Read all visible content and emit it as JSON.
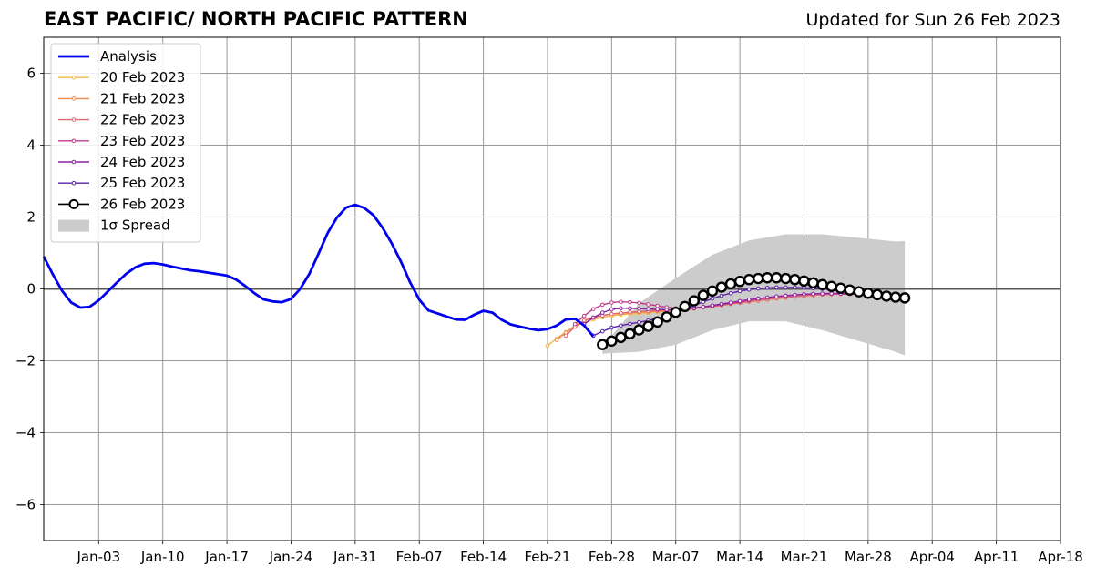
{
  "title": "EAST PACIFIC/ NORTH PACIFIC PATTERN",
  "subtitle": "Updated for Sun 26 Feb 2023",
  "chart_data": {
    "type": "line",
    "title": "EAST PACIFIC/ NORTH PACIFIC PATTERN",
    "subtitle": "Updated for Sun 26 Feb 2023",
    "xlabel": "",
    "ylabel": "",
    "xlim": [
      "2022-12-28",
      "2023-04-18"
    ],
    "ylim": [
      -7,
      7
    ],
    "x_ticks": [
      "Jan-03",
      "Jan-10",
      "Jan-17",
      "Jan-24",
      "Jan-31",
      "Feb-07",
      "Feb-14",
      "Feb-21",
      "Feb-28",
      "Mar-07",
      "Mar-14",
      "Mar-21",
      "Mar-28",
      "Apr-04",
      "Apr-11",
      "Apr-18"
    ],
    "y_ticks": [
      6,
      4,
      2,
      0,
      -2,
      -4,
      -6
    ],
    "y_tick_labels": [
      "6",
      "4",
      "2",
      "0",
      "−2",
      "−4",
      "−6"
    ],
    "grid": true,
    "legend_position": "top-left",
    "spread": {
      "name": "1σ Spread",
      "color": "#cccccc",
      "x": [
        "2023-02-27",
        "2023-03-03",
        "2023-03-07",
        "2023-03-11",
        "2023-03-15",
        "2023-03-19",
        "2023-03-23",
        "2023-03-27",
        "2023-03-31",
        "2023-04-01"
      ],
      "upper": [
        -1.6,
        -0.4,
        0.3,
        0.95,
        1.35,
        1.52,
        1.52,
        1.42,
        1.32,
        1.33
      ],
      "lower": [
        -1.8,
        -1.75,
        -1.55,
        -1.15,
        -0.9,
        -0.9,
        -1.15,
        -1.45,
        -1.75,
        -1.85
      ]
    },
    "series": [
      {
        "name": "Analysis",
        "color": "#0000ee",
        "style": "analysis",
        "x": [
          "2022-12-28",
          "2022-12-29",
          "2022-12-30",
          "2022-12-31",
          "2023-01-01",
          "2023-01-02",
          "2023-01-03",
          "2023-01-04",
          "2023-01-05",
          "2023-01-06",
          "2023-01-07",
          "2023-01-08",
          "2023-01-09",
          "2023-01-10",
          "2023-01-11",
          "2023-01-12",
          "2023-01-13",
          "2023-01-14",
          "2023-01-15",
          "2023-01-16",
          "2023-01-17",
          "2023-01-18",
          "2023-01-19",
          "2023-01-20",
          "2023-01-21",
          "2023-01-22",
          "2023-01-23",
          "2023-01-24",
          "2023-01-25",
          "2023-01-26",
          "2023-01-27",
          "2023-01-28",
          "2023-01-29",
          "2023-01-30",
          "2023-01-31",
          "2023-02-01",
          "2023-02-02",
          "2023-02-03",
          "2023-02-04",
          "2023-02-05",
          "2023-02-06",
          "2023-02-07",
          "2023-02-08",
          "2023-02-09",
          "2023-02-10",
          "2023-02-11",
          "2023-02-12",
          "2023-02-13",
          "2023-02-14",
          "2023-02-15",
          "2023-02-16",
          "2023-02-17",
          "2023-02-18",
          "2023-02-19",
          "2023-02-20",
          "2023-02-21",
          "2023-02-22",
          "2023-02-23",
          "2023-02-24",
          "2023-02-25",
          "2023-02-26"
        ],
        "values": [
          0.9,
          0.4,
          -0.05,
          -0.38,
          -0.52,
          -0.5,
          -0.32,
          -0.07,
          0.18,
          0.42,
          0.6,
          0.7,
          0.72,
          0.68,
          0.62,
          0.57,
          0.52,
          0.49,
          0.45,
          0.41,
          0.37,
          0.26,
          0.08,
          -0.12,
          -0.29,
          -0.35,
          -0.37,
          -0.28,
          0.0,
          0.42,
          0.98,
          1.56,
          1.98,
          2.26,
          2.34,
          2.25,
          2.05,
          1.7,
          1.26,
          0.76,
          0.18,
          -0.3,
          -0.6,
          -0.68,
          -0.77,
          -0.85,
          -0.86,
          -0.72,
          -0.61,
          -0.66,
          -0.86,
          -0.99,
          -1.05,
          -1.11,
          -1.15,
          -1.12,
          -1.02,
          -0.85,
          -0.83,
          -1.02,
          -1.32
        ]
      },
      {
        "name": "20 Feb 2023",
        "color": "#f5b841",
        "style": "small",
        "x": [
          "2023-02-21",
          "2023-02-22",
          "2023-02-23",
          "2023-02-24",
          "2023-02-25",
          "2023-02-26",
          "2023-02-27",
          "2023-02-28",
          "2023-03-01",
          "2023-03-02",
          "2023-03-03",
          "2023-03-04",
          "2023-03-05",
          "2023-03-06",
          "2023-03-07",
          "2023-03-08",
          "2023-03-09",
          "2023-03-10",
          "2023-03-11",
          "2023-03-12",
          "2023-03-13",
          "2023-03-14",
          "2023-03-15",
          "2023-03-16",
          "2023-03-17",
          "2023-03-18",
          "2023-03-19",
          "2023-03-20",
          "2023-03-21",
          "2023-03-22",
          "2023-03-23",
          "2023-03-24",
          "2023-03-25",
          "2023-03-26"
        ],
        "values": [
          -1.58,
          -1.38,
          -1.2,
          -1.05,
          -0.93,
          -0.85,
          -0.79,
          -0.75,
          -0.72,
          -0.7,
          -0.68,
          -0.66,
          -0.64,
          -0.62,
          -0.6,
          -0.56,
          -0.53,
          -0.5,
          -0.47,
          -0.44,
          -0.41,
          -0.38,
          -0.35,
          -0.32,
          -0.29,
          -0.26,
          -0.23,
          -0.2,
          -0.18,
          -0.16,
          -0.15,
          -0.14,
          -0.14,
          -0.14
        ]
      },
      {
        "name": "21 Feb 2023",
        "color": "#f08a4b",
        "style": "small",
        "x": [
          "2023-02-22",
          "2023-02-23",
          "2023-02-24",
          "2023-02-25",
          "2023-02-26",
          "2023-02-27",
          "2023-02-28",
          "2023-03-01",
          "2023-03-02",
          "2023-03-03",
          "2023-03-04",
          "2023-03-05",
          "2023-03-06",
          "2023-03-07",
          "2023-03-08",
          "2023-03-09",
          "2023-03-10",
          "2023-03-11",
          "2023-03-12",
          "2023-03-13",
          "2023-03-14",
          "2023-03-15",
          "2023-03-16",
          "2023-03-17",
          "2023-03-18",
          "2023-03-19",
          "2023-03-20",
          "2023-03-21",
          "2023-03-22",
          "2023-03-23",
          "2023-03-24",
          "2023-03-25",
          "2023-03-26",
          "2023-03-27"
        ],
        "values": [
          -1.42,
          -1.22,
          -1.02,
          -0.88,
          -0.8,
          -0.74,
          -0.7,
          -0.68,
          -0.66,
          -0.65,
          -0.64,
          -0.62,
          -0.61,
          -0.6,
          -0.58,
          -0.55,
          -0.52,
          -0.49,
          -0.46,
          -0.42,
          -0.39,
          -0.36,
          -0.33,
          -0.3,
          -0.27,
          -0.25,
          -0.22,
          -0.2,
          -0.18,
          -0.16,
          -0.15,
          -0.14,
          -0.14,
          -0.14
        ]
      },
      {
        "name": "22 Feb 2023",
        "color": "#e06470",
        "style": "small",
        "x": [
          "2023-02-23",
          "2023-02-24",
          "2023-02-25",
          "2023-02-26",
          "2023-02-27",
          "2023-02-28",
          "2023-03-01",
          "2023-03-02",
          "2023-03-03",
          "2023-03-04",
          "2023-03-05",
          "2023-03-06",
          "2023-03-07",
          "2023-03-08",
          "2023-03-09",
          "2023-03-10",
          "2023-03-11",
          "2023-03-12",
          "2023-03-13",
          "2023-03-14",
          "2023-03-15",
          "2023-03-16",
          "2023-03-17",
          "2023-03-18",
          "2023-03-19",
          "2023-03-20",
          "2023-03-21",
          "2023-03-22",
          "2023-03-23",
          "2023-03-24",
          "2023-03-25",
          "2023-03-26",
          "2023-03-27"
        ],
        "values": [
          -1.3,
          -1.05,
          -0.88,
          -0.8,
          -0.74,
          -0.7,
          -0.67,
          -0.65,
          -0.63,
          -0.61,
          -0.6,
          -0.59,
          -0.58,
          -0.56,
          -0.54,
          -0.51,
          -0.48,
          -0.45,
          -0.42,
          -0.38,
          -0.35,
          -0.32,
          -0.29,
          -0.26,
          -0.23,
          -0.21,
          -0.19,
          -0.17,
          -0.16,
          -0.15,
          -0.14,
          -0.14,
          -0.14
        ]
      },
      {
        "name": "23 Feb 2023",
        "color": "#c23b8a",
        "style": "small",
        "x": [
          "2023-02-24",
          "2023-02-25",
          "2023-02-26",
          "2023-02-27",
          "2023-02-28",
          "2023-03-01",
          "2023-03-02",
          "2023-03-03",
          "2023-03-04",
          "2023-03-05",
          "2023-03-06",
          "2023-03-07",
          "2023-03-08",
          "2023-03-09",
          "2023-03-10",
          "2023-03-11",
          "2023-03-12",
          "2023-03-13",
          "2023-03-14",
          "2023-03-15",
          "2023-03-16",
          "2023-03-17",
          "2023-03-18",
          "2023-03-19",
          "2023-03-20",
          "2023-03-21",
          "2023-03-22",
          "2023-03-23",
          "2023-03-24",
          "2023-03-25",
          "2023-03-26",
          "2023-03-27"
        ],
        "values": [
          -0.98,
          -0.75,
          -0.56,
          -0.44,
          -0.38,
          -0.36,
          -0.37,
          -0.39,
          -0.43,
          -0.47,
          -0.51,
          -0.54,
          -0.55,
          -0.54,
          -0.51,
          -0.48,
          -0.44,
          -0.4,
          -0.36,
          -0.32,
          -0.28,
          -0.25,
          -0.22,
          -0.19,
          -0.17,
          -0.15,
          -0.14,
          -0.13,
          -0.13,
          -0.13,
          -0.14,
          -0.15
        ]
      },
      {
        "name": "24 Feb 2023",
        "color": "#8c22a3",
        "style": "small",
        "x": [
          "2023-02-25",
          "2023-02-26",
          "2023-02-27",
          "2023-02-28",
          "2023-03-01",
          "2023-03-02",
          "2023-03-03",
          "2023-03-04",
          "2023-03-05",
          "2023-03-06",
          "2023-03-07",
          "2023-03-08",
          "2023-03-09",
          "2023-03-10",
          "2023-03-11",
          "2023-03-12",
          "2023-03-13",
          "2023-03-14",
          "2023-03-15",
          "2023-03-16",
          "2023-03-17",
          "2023-03-18",
          "2023-03-19",
          "2023-03-20",
          "2023-03-21",
          "2023-03-22",
          "2023-03-23",
          "2023-03-24",
          "2023-03-25",
          "2023-03-26",
          "2023-03-27",
          "2023-03-28"
        ],
        "values": [
          -0.98,
          -0.8,
          -0.66,
          -0.57,
          -0.54,
          -0.54,
          -0.55,
          -0.56,
          -0.57,
          -0.58,
          -0.58,
          -0.56,
          -0.53,
          -0.5,
          -0.46,
          -0.42,
          -0.38,
          -0.34,
          -0.3,
          -0.27,
          -0.24,
          -0.21,
          -0.19,
          -0.17,
          -0.15,
          -0.14,
          -0.13,
          -0.13,
          -0.13,
          -0.14,
          -0.15,
          -0.16
        ]
      },
      {
        "name": "25 Feb 2023",
        "color": "#5a1ea8",
        "style": "small",
        "x": [
          "2023-02-26",
          "2023-02-27",
          "2023-02-28",
          "2023-03-01",
          "2023-03-02",
          "2023-03-03",
          "2023-03-04",
          "2023-03-05",
          "2023-03-06",
          "2023-03-07",
          "2023-03-08",
          "2023-03-09",
          "2023-03-10",
          "2023-03-11",
          "2023-03-12",
          "2023-03-13",
          "2023-03-14",
          "2023-03-15",
          "2023-03-16",
          "2023-03-17",
          "2023-03-18",
          "2023-03-19",
          "2023-03-20",
          "2023-03-21",
          "2023-03-22",
          "2023-03-23",
          "2023-03-24",
          "2023-03-25",
          "2023-03-26",
          "2023-03-27",
          "2023-03-28",
          "2023-03-29"
        ],
        "values": [
          -1.3,
          -1.18,
          -1.08,
          -1.02,
          -0.97,
          -0.93,
          -0.88,
          -0.82,
          -0.75,
          -0.66,
          -0.56,
          -0.46,
          -0.36,
          -0.27,
          -0.19,
          -0.12,
          -0.06,
          -0.02,
          0.01,
          0.03,
          0.04,
          0.04,
          0.04,
          0.03,
          0.02,
          0.0,
          -0.02,
          -0.04,
          -0.06,
          -0.08,
          -0.1,
          -0.12
        ]
      },
      {
        "name": "26 Feb 2023",
        "color": "#000000",
        "style": "large",
        "x": [
          "2023-02-27",
          "2023-02-28",
          "2023-03-01",
          "2023-03-02",
          "2023-03-03",
          "2023-03-04",
          "2023-03-05",
          "2023-03-06",
          "2023-03-07",
          "2023-03-08",
          "2023-03-09",
          "2023-03-10",
          "2023-03-11",
          "2023-03-12",
          "2023-03-13",
          "2023-03-14",
          "2023-03-15",
          "2023-03-16",
          "2023-03-17",
          "2023-03-18",
          "2023-03-19",
          "2023-03-20",
          "2023-03-21",
          "2023-03-22",
          "2023-03-23",
          "2023-03-24",
          "2023-03-25",
          "2023-03-26",
          "2023-03-27",
          "2023-03-28",
          "2023-03-29",
          "2023-03-30",
          "2023-03-31",
          "2023-04-01"
        ],
        "values": [
          -1.55,
          -1.45,
          -1.35,
          -1.25,
          -1.14,
          -1.04,
          -0.92,
          -0.78,
          -0.65,
          -0.49,
          -0.33,
          -0.18,
          -0.06,
          0.05,
          0.14,
          0.21,
          0.26,
          0.29,
          0.31,
          0.31,
          0.29,
          0.26,
          0.22,
          0.17,
          0.12,
          0.07,
          0.02,
          -0.03,
          -0.08,
          -0.12,
          -0.16,
          -0.2,
          -0.23,
          -0.25
        ]
      }
    ]
  }
}
